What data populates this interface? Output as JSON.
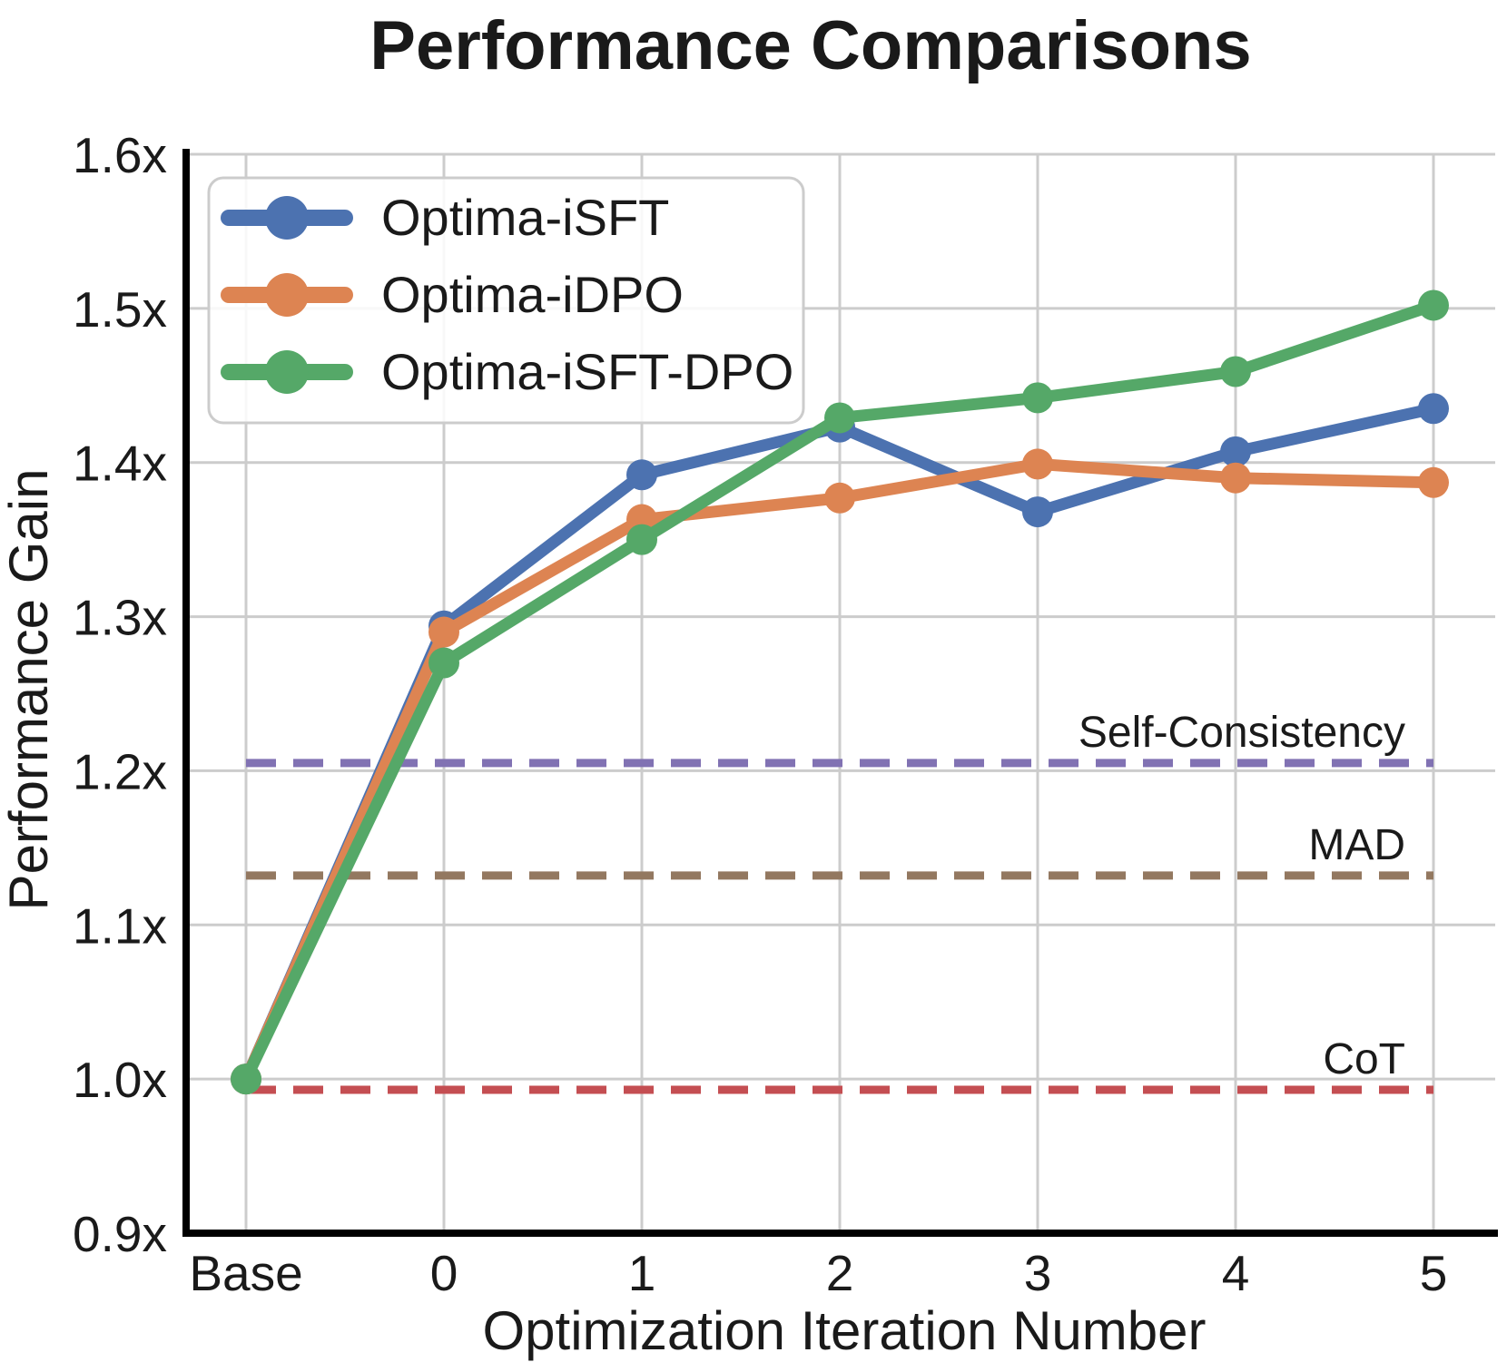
{
  "chart_data": {
    "type": "line",
    "title": "Performance Comparisons",
    "xlabel": "Optimization Iteration Number",
    "ylabel": "Performance Gain",
    "x_categories": [
      "Base",
      "0",
      "1",
      "2",
      "3",
      "4",
      "5"
    ],
    "ylim": [
      0.9,
      1.6
    ],
    "ytick_values": [
      0.9,
      1.0,
      1.1,
      1.2,
      1.3,
      1.4,
      1.5,
      1.6
    ],
    "ytick_labels": [
      "0.9x",
      "1.0x",
      "1.1x",
      "1.2x",
      "1.3x",
      "1.4x",
      "1.5x",
      "1.6x"
    ],
    "grid": true,
    "legend_position": "upper-left",
    "series": [
      {
        "name": "Optima-iSFT",
        "color": "#4C72B0",
        "values": [
          1.0,
          1.294,
          1.392,
          1.423,
          1.368,
          1.407,
          1.435
        ]
      },
      {
        "name": "Optima-iDPO",
        "color": "#DD8452",
        "values": [
          1.0,
          1.29,
          1.363,
          1.377,
          1.399,
          1.39,
          1.387
        ]
      },
      {
        "name": "Optima-iSFT-DPO",
        "color": "#55A868",
        "values": [
          1.0,
          1.27,
          1.35,
          1.429,
          1.442,
          1.459,
          1.502
        ]
      }
    ],
    "ref_lines": [
      {
        "label": "Self-Consistency",
        "value": 1.205,
        "color": "#8172B3"
      },
      {
        "label": "MAD",
        "value": 1.132,
        "color": "#937860"
      },
      {
        "label": "CoT",
        "value": 0.993,
        "color": "#C44E52"
      }
    ]
  }
}
